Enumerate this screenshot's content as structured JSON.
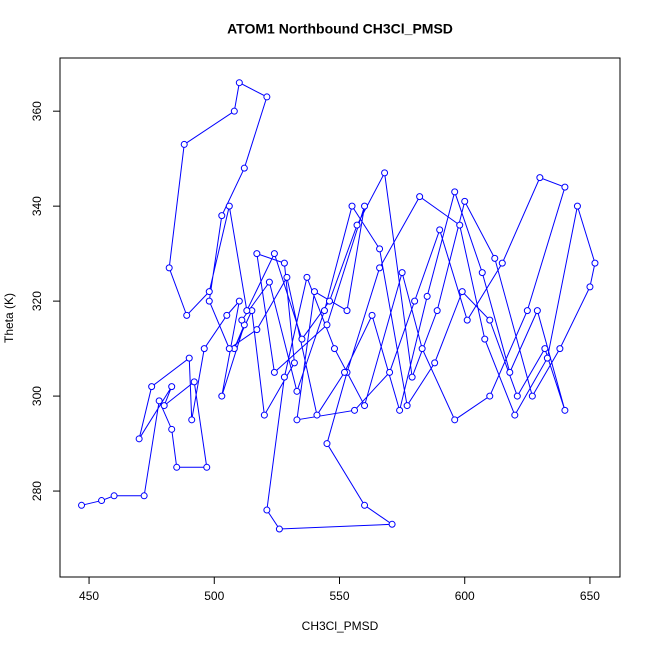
{
  "chart_data": {
    "type": "line",
    "title": "ATOM1 Northbound CH3Cl_PMSD",
    "x_label": "CH3Cl_PMSD",
    "y_label": "Theta (K)",
    "xlim": [
      438.4,
      662
    ],
    "ylim": [
      261.9,
      371.2
    ],
    "xticks": [
      450,
      500,
      550,
      600,
      650
    ],
    "yticks": [
      280,
      300,
      320,
      340,
      360
    ],
    "x": [
      447,
      455,
      460,
      472,
      478,
      483,
      485,
      497,
      492,
      480,
      483,
      470,
      475,
      490,
      491,
      496,
      505,
      510,
      503,
      512,
      508,
      515,
      520,
      532,
      528,
      517,
      524,
      545,
      560,
      553,
      540,
      533,
      556,
      570,
      580,
      590,
      601,
      615,
      630,
      640,
      625,
      610,
      596,
      583,
      575,
      560,
      548,
      537,
      528,
      521,
      526,
      571,
      560,
      545,
      553,
      566,
      582,
      598,
      608,
      620,
      633,
      645,
      652,
      650,
      638,
      627,
      612,
      600,
      589,
      579,
      568,
      557,
      546,
      535,
      524,
      513,
      506,
      498,
      489,
      482,
      488,
      508,
      510,
      521,
      512,
      503,
      498,
      506,
      517,
      529,
      541,
      552,
      563,
      574,
      585,
      596,
      607,
      618,
      629,
      640,
      632,
      621,
      610,
      599,
      588,
      577,
      566,
      555,
      544,
      533,
      522,
      511
    ],
    "series": [
      {
        "color": "#0000ff",
        "values": [
          277,
          278,
          279,
          279,
          299,
          293,
          285,
          285,
          303,
          298,
          302,
          291,
          302,
          308,
          295,
          310,
          317,
          320,
          300,
          315,
          310,
          318,
          296,
          307,
          328,
          330,
          305,
          315,
          340,
          318,
          322,
          295,
          297,
          305,
          320,
          335,
          316,
          328,
          346,
          344,
          318,
          300,
          295,
          310,
          326,
          298,
          310,
          325,
          304,
          276,
          272,
          273,
          277,
          290,
          305,
          327,
          342,
          336,
          312,
          296,
          308,
          340,
          328,
          323,
          310,
          300,
          329,
          341,
          318,
          304,
          347,
          336,
          320,
          312,
          330,
          318,
          340,
          322,
          317,
          327,
          353,
          360,
          366,
          363,
          348,
          338,
          320,
          310,
          314,
          325,
          296,
          305,
          317,
          297,
          321,
          343,
          326,
          305,
          318,
          297,
          310,
          300,
          316,
          322,
          307,
          298,
          331,
          340,
          318,
          301,
          324,
          316
        ]
      }
    ]
  }
}
